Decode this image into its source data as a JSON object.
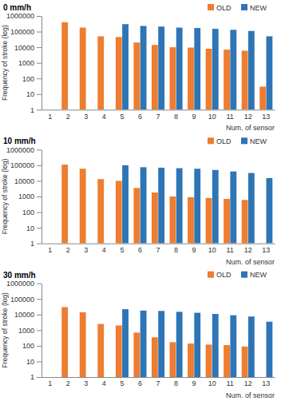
{
  "chart_data": [
    {
      "type": "bar",
      "title": "0 mm/h",
      "x_label": "Num. of sensor",
      "y_label": "Frequency of stroke (log)",
      "categories": [
        "1",
        "2",
        "3",
        "4",
        "5",
        "6",
        "7",
        "8",
        "9",
        "10",
        "11",
        "12",
        "13"
      ],
      "series": [
        {
          "name": "OLD",
          "color": "#ed7d31",
          "values": [
            null,
            400000,
            180000,
            50000,
            45000,
            20000,
            14000,
            10000,
            9500,
            8000,
            7000,
            6000,
            30
          ]
        },
        {
          "name": "NEW",
          "color": "#2e75b6",
          "values": [
            null,
            null,
            null,
            null,
            300000,
            230000,
            210000,
            180000,
            170000,
            150000,
            130000,
            110000,
            50000
          ]
        }
      ],
      "ylim": [
        1,
        1000000
      ],
      "yticks": [
        1,
        10,
        100,
        1000,
        10000,
        100000,
        1000000
      ],
      "log": "y",
      "legend": "top-right"
    },
    {
      "type": "bar",
      "title": "10 mm/h",
      "x_label": "Num. of sensor",
      "y_label": "Frequency of stroke (log)",
      "categories": [
        "1",
        "2",
        "3",
        "4",
        "5",
        "6",
        "7",
        "8",
        "9",
        "10",
        "11",
        "12",
        "13"
      ],
      "series": [
        {
          "name": "OLD",
          "color": "#ed7d31",
          "values": [
            null,
            110000,
            60000,
            13000,
            10000,
            3500,
            1800,
            1000,
            900,
            800,
            700,
            600,
            null
          ]
        },
        {
          "name": "NEW",
          "color": "#2e75b6",
          "values": [
            null,
            null,
            null,
            null,
            100000,
            75000,
            70000,
            65000,
            60000,
            50000,
            40000,
            32000,
            15000
          ]
        }
      ],
      "ylim": [
        1,
        1000000
      ],
      "yticks": [
        1,
        10,
        100,
        1000,
        10000,
        100000,
        1000000
      ],
      "log": "y",
      "legend": "top-right"
    },
    {
      "type": "bar",
      "title": "30 mm/h",
      "x_label": "Num. of sensor",
      "y_label": "Frequency of stroke (log)",
      "categories": [
        "1",
        "2",
        "3",
        "4",
        "5",
        "6",
        "7",
        "8",
        "9",
        "10",
        "11",
        "12",
        "13"
      ],
      "series": [
        {
          "name": "OLD",
          "color": "#ed7d31",
          "values": [
            null,
            30000,
            14000,
            2500,
            2000,
            700,
            350,
            170,
            140,
            120,
            110,
            90,
            null
          ]
        },
        {
          "name": "NEW",
          "color": "#2e75b6",
          "values": [
            null,
            null,
            null,
            null,
            22000,
            18000,
            17000,
            15000,
            13000,
            11000,
            9000,
            7500,
            3500
          ]
        }
      ],
      "ylim": [
        1,
        1000000
      ],
      "yticks": [
        1,
        10,
        100,
        1000,
        10000,
        100000,
        1000000
      ],
      "log": "y",
      "legend": "top-right"
    }
  ]
}
